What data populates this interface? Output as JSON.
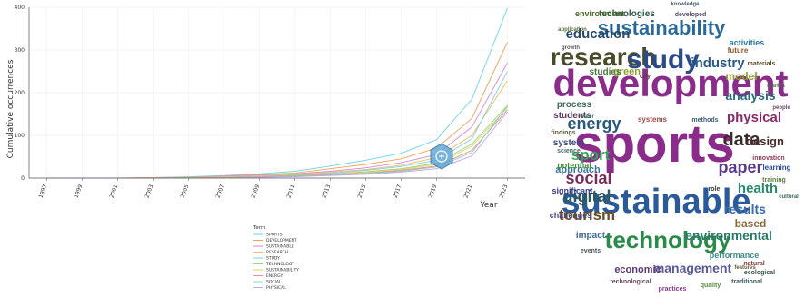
{
  "chart_data": [
    {
      "type": "line",
      "xlabel": "Year",
      "ylabel": "Cumulative occurrences",
      "x": [
        1997,
        1999,
        2001,
        2003,
        2005,
        2007,
        2009,
        2011,
        2013,
        2015,
        2017,
        2019,
        2021,
        2023
      ],
      "xticks": [
        "1997",
        "1999",
        "2001",
        "2003",
        "2005",
        "2007",
        "2009",
        "2011",
        "2013",
        "2015",
        "2017",
        "2019",
        "2021",
        "2023"
      ],
      "yticks": [
        0,
        100,
        200,
        300,
        400
      ],
      "ylim": [
        0,
        400
      ],
      "xlim": [
        1996,
        2024
      ],
      "legend_title": "Term",
      "legend_position": "bottom",
      "series": [
        {
          "name": "SPORTS",
          "color": "#6fd3e8",
          "values": [
            0,
            0,
            0,
            1,
            3,
            6,
            10,
            16,
            28,
            42,
            58,
            90,
            185,
            398
          ]
        },
        {
          "name": "DEVELOPMENT",
          "color": "#f2a05a",
          "values": [
            0,
            0,
            0,
            1,
            2,
            5,
            8,
            12,
            22,
            32,
            45,
            70,
            140,
            318
          ]
        },
        {
          "name": "SUSTAINABLE",
          "color": "#d58ad6",
          "values": [
            0,
            0,
            0,
            0,
            1,
            4,
            7,
            10,
            16,
            24,
            36,
            55,
            120,
            270
          ]
        },
        {
          "name": "RESEARCH",
          "color": "#e6c25a",
          "values": [
            0,
            0,
            0,
            0,
            1,
            3,
            5,
            8,
            14,
            20,
            30,
            48,
            100,
            228
          ]
        },
        {
          "name": "STUDY",
          "color": "#8ec6f0",
          "values": [
            0,
            0,
            0,
            0,
            1,
            2,
            4,
            7,
            12,
            18,
            27,
            42,
            92,
            250
          ]
        },
        {
          "name": "TECHNOLOGY",
          "color": "#9bd47a",
          "values": [
            0,
            0,
            0,
            0,
            1,
            2,
            4,
            6,
            10,
            15,
            22,
            35,
            80,
            170
          ]
        },
        {
          "name": "SUSTAINABILITY",
          "color": "#d9d466",
          "values": [
            0,
            0,
            0,
            0,
            0,
            2,
            3,
            5,
            9,
            14,
            20,
            32,
            75,
            165
          ]
        },
        {
          "name": "ENERGY",
          "color": "#f08c8c",
          "values": [
            0,
            0,
            0,
            0,
            0,
            1,
            3,
            5,
            8,
            12,
            18,
            28,
            65,
            160
          ]
        },
        {
          "name": "SOCIAL",
          "color": "#7fd9b0",
          "values": [
            0,
            0,
            0,
            0,
            0,
            1,
            2,
            4,
            7,
            11,
            16,
            26,
            60,
            168
          ]
        },
        {
          "name": "PHYSICAL",
          "color": "#c8a0e8",
          "values": [
            0,
            0,
            0,
            0,
            0,
            1,
            2,
            3,
            6,
            9,
            14,
            22,
            52,
            155
          ]
        }
      ]
    },
    {
      "type": "wordcloud",
      "words": [
        {
          "text": "sports",
          "color": "#8a2d8a"
        },
        {
          "text": "development",
          "color": "#8a2d8a"
        },
        {
          "text": "sustainable",
          "color": "#2a5a9a"
        },
        {
          "text": "research",
          "color": "#4a4a2a"
        },
        {
          "text": "study",
          "color": "#2a4a8a"
        },
        {
          "text": "technology",
          "color": "#2a8a4a"
        },
        {
          "text": "sustainability",
          "color": "#2a6a9a"
        },
        {
          "text": "energy",
          "color": "#2a5a7a"
        },
        {
          "text": "environmental",
          "color": "#2a7a6a"
        },
        {
          "text": "education",
          "color": "#2a4a6a"
        },
        {
          "text": "industry",
          "color": "#2a5a8a"
        },
        {
          "text": "paper",
          "color": "#5a3a8a"
        },
        {
          "text": "data",
          "color": "#3a2a2a"
        },
        {
          "text": "health",
          "color": "#2a8a6a"
        },
        {
          "text": "design",
          "color": "#4a2a2a"
        },
        {
          "text": "sport",
          "color": "#3aa05a"
        },
        {
          "text": "social",
          "color": "#7a2a5a"
        },
        {
          "text": "digital",
          "color": "#2a5a5a"
        },
        {
          "text": "tourism",
          "color": "#6a4a2a"
        },
        {
          "text": "physical",
          "color": "#8a2a6a"
        },
        {
          "text": "analysis",
          "color": "#2a6a7a"
        },
        {
          "text": "model",
          "color": "#8aa02a"
        },
        {
          "text": "management",
          "color": "#5a5a9a"
        },
        {
          "text": "results",
          "color": "#3a6aaa"
        },
        {
          "text": "based",
          "color": "#8a6a3a"
        },
        {
          "text": "activities",
          "color": "#2a7aaa"
        },
        {
          "text": "technologies",
          "color": "#2a5a4a"
        },
        {
          "text": "environment",
          "color": "#4a6a2a"
        },
        {
          "text": "economic",
          "color": "#5a3a7a"
        },
        {
          "text": "impact",
          "color": "#3a6a9a"
        },
        {
          "text": "process",
          "color": "#3a6a5a"
        },
        {
          "text": "system",
          "color": "#3a4a7a"
        },
        {
          "text": "students",
          "color": "#5a3a5a"
        },
        {
          "text": "approach",
          "color": "#3a7a9a"
        },
        {
          "text": "potential",
          "color": "#4a8a3a"
        },
        {
          "text": "significant",
          "color": "#3a3a8a"
        },
        {
          "text": "learning",
          "color": "#2a4a9a"
        },
        {
          "text": "innovation",
          "color": "#8a3a5a"
        },
        {
          "text": "training",
          "color": "#5a7a3a"
        },
        {
          "text": "performance",
          "color": "#3a8a8a"
        },
        {
          "text": "challenges",
          "color": "#4a4a7a"
        },
        {
          "text": "materials",
          "color": "#5a4a2a"
        },
        {
          "text": "green",
          "color": "#8aa02a"
        },
        {
          "text": "studies",
          "color": "#4a7a3a"
        },
        {
          "text": "systems",
          "color": "#a04a4a"
        },
        {
          "text": "science",
          "color": "#4a6a6a"
        },
        {
          "text": "future",
          "color": "#8a5a2a"
        },
        {
          "text": "city",
          "color": "#5a3a3a"
        },
        {
          "text": "methods",
          "color": "#3a5a7a"
        },
        {
          "text": "findings",
          "color": "#5a5a3a"
        },
        {
          "text": "events",
          "color": "#4a5a5a"
        },
        {
          "text": "practices",
          "color": "#8a3a8a"
        },
        {
          "text": "quality",
          "color": "#5a8a3a"
        },
        {
          "text": "technological",
          "color": "#6a4a5a"
        },
        {
          "text": "traditional",
          "color": "#3a5a5a"
        },
        {
          "text": "natural",
          "color": "#8a3a3a"
        },
        {
          "text": "cultural",
          "color": "#3a6a5a"
        },
        {
          "text": "ecological",
          "color": "#3a5a4a"
        },
        {
          "text": "application",
          "color": "#5a6a3a"
        },
        {
          "text": "knowledge",
          "color": "#4a5a6a"
        },
        {
          "text": "developed",
          "color": "#5a4a6a"
        },
        {
          "text": "role",
          "color": "#3a3a3a"
        },
        {
          "text": "people",
          "color": "#6a4a6a"
        },
        {
          "text": "market",
          "color": "#4a6a4a"
        },
        {
          "text": "water",
          "color": "#3a7a6a"
        },
        {
          "text": "growth",
          "color": "#5a5a5a"
        },
        {
          "text": "features",
          "color": "#6a5a3a"
        }
      ]
    }
  ]
}
